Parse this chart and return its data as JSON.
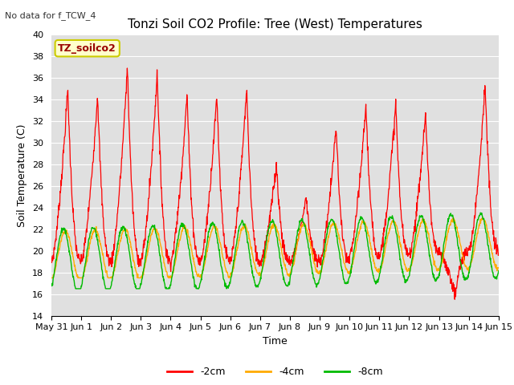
{
  "title": "Tonzi Soil CO2 Profile: Tree (West) Temperatures",
  "subtitle": "No data for f_TCW_4",
  "xlabel": "Time",
  "ylabel": "Soil Temperature (C)",
  "ylim": [
    14,
    40
  ],
  "yticks": [
    14,
    16,
    18,
    20,
    22,
    24,
    26,
    28,
    30,
    32,
    34,
    36,
    38,
    40
  ],
  "xtick_labels": [
    "May 31",
    "Jun 1",
    "Jun 2",
    "Jun 3",
    "Jun 4",
    "Jun 5",
    "Jun 6",
    "Jun 7",
    "Jun 8",
    "Jun 9",
    "Jun 10",
    "Jun 11",
    "Jun 12",
    "Jun 13",
    "Jun 14",
    "Jun 15"
  ],
  "legend_labels": [
    "-2cm",
    "-4cm",
    "-8cm"
  ],
  "line_colors": [
    "#ff0000",
    "#ffaa00",
    "#00bb00"
  ],
  "box_label": "TZ_soilco2",
  "box_facecolor": "#ffffcc",
  "box_edgecolor": "#cccc00",
  "box_textcolor": "#990000",
  "plot_bg": "#e0e0e0",
  "grid_color": "#ffffff",
  "title_fontsize": 11,
  "label_fontsize": 9,
  "tick_fontsize": 8
}
